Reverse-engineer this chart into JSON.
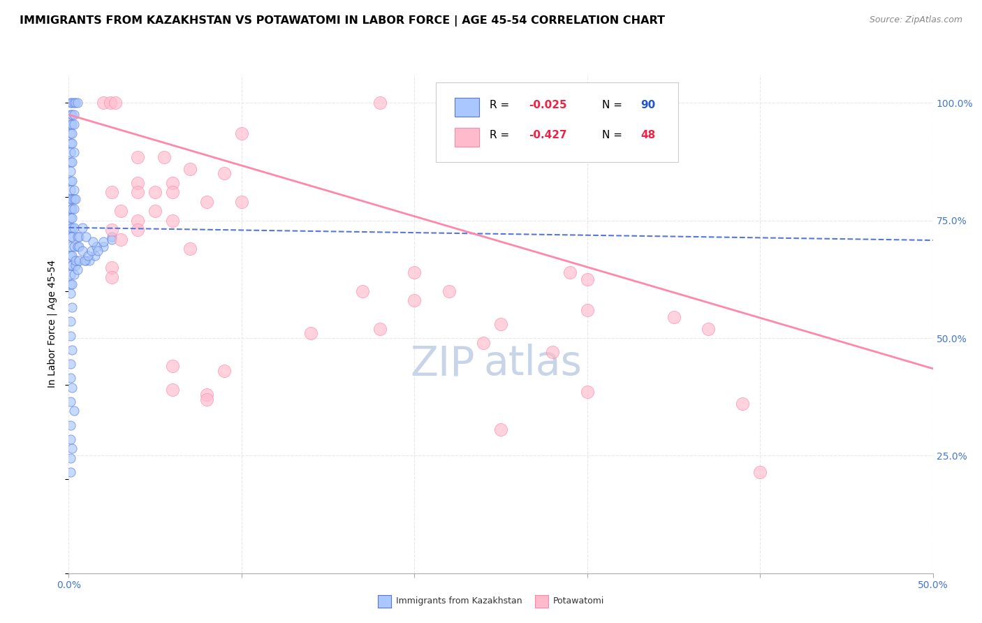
{
  "title": "IMMIGRANTS FROM KAZAKHSTAN VS POTAWATOMI IN LABOR FORCE | AGE 45-54 CORRELATION CHART",
  "source": "Source: ZipAtlas.com",
  "ylabel": "In Labor Force | Age 45-54",
  "xmin": 0.0,
  "xmax": 0.5,
  "ymin": 0.0,
  "ymax": 1.06,
  "y_ticks": [
    0.25,
    0.5,
    0.75,
    1.0
  ],
  "y_tick_labels": [
    "25.0%",
    "50.0%",
    "75.0%",
    "100.0%"
  ],
  "x_ticks": [
    0.0,
    0.1,
    0.2,
    0.3,
    0.4,
    0.5
  ],
  "x_tick_labels_show": [
    "0.0%",
    "",
    "",
    "",
    "",
    "50.0%"
  ],
  "watermark_top": "ZIP",
  "watermark_bot": "atlas",
  "blue_scatter": [
    [
      0.001,
      1.0
    ],
    [
      0.002,
      1.0
    ],
    [
      0.003,
      1.0
    ],
    [
      0.004,
      1.0
    ],
    [
      0.005,
      1.0
    ],
    [
      0.001,
      0.975
    ],
    [
      0.002,
      0.975
    ],
    [
      0.003,
      0.975
    ],
    [
      0.001,
      0.955
    ],
    [
      0.002,
      0.955
    ],
    [
      0.003,
      0.955
    ],
    [
      0.001,
      0.935
    ],
    [
      0.002,
      0.935
    ],
    [
      0.001,
      0.915
    ],
    [
      0.002,
      0.915
    ],
    [
      0.001,
      0.895
    ],
    [
      0.003,
      0.895
    ],
    [
      0.001,
      0.875
    ],
    [
      0.002,
      0.875
    ],
    [
      0.001,
      0.855
    ],
    [
      0.001,
      0.835
    ],
    [
      0.002,
      0.835
    ],
    [
      0.001,
      0.815
    ],
    [
      0.003,
      0.815
    ],
    [
      0.001,
      0.795
    ],
    [
      0.002,
      0.795
    ],
    [
      0.003,
      0.795
    ],
    [
      0.004,
      0.795
    ],
    [
      0.001,
      0.775
    ],
    [
      0.002,
      0.775
    ],
    [
      0.003,
      0.775
    ],
    [
      0.001,
      0.755
    ],
    [
      0.002,
      0.755
    ],
    [
      0.001,
      0.735
    ],
    [
      0.002,
      0.735
    ],
    [
      0.003,
      0.735
    ],
    [
      0.001,
      0.715
    ],
    [
      0.002,
      0.715
    ],
    [
      0.005,
      0.715
    ],
    [
      0.006,
      0.715
    ],
    [
      0.001,
      0.695
    ],
    [
      0.003,
      0.695
    ],
    [
      0.005,
      0.695
    ],
    [
      0.001,
      0.675
    ],
    [
      0.002,
      0.675
    ],
    [
      0.001,
      0.655
    ],
    [
      0.002,
      0.655
    ],
    [
      0.004,
      0.655
    ],
    [
      0.001,
      0.635
    ],
    [
      0.003,
      0.635
    ],
    [
      0.001,
      0.615
    ],
    [
      0.002,
      0.615
    ],
    [
      0.001,
      0.595
    ],
    [
      0.002,
      0.565
    ],
    [
      0.001,
      0.535
    ],
    [
      0.001,
      0.505
    ],
    [
      0.002,
      0.475
    ],
    [
      0.001,
      0.445
    ],
    [
      0.001,
      0.415
    ],
    [
      0.002,
      0.395
    ],
    [
      0.001,
      0.365
    ],
    [
      0.003,
      0.345
    ],
    [
      0.001,
      0.315
    ],
    [
      0.001,
      0.285
    ],
    [
      0.002,
      0.265
    ],
    [
      0.001,
      0.245
    ],
    [
      0.001,
      0.215
    ],
    [
      0.004,
      0.665
    ],
    [
      0.006,
      0.665
    ],
    [
      0.005,
      0.645
    ],
    [
      0.01,
      0.665
    ],
    [
      0.012,
      0.665
    ],
    [
      0.015,
      0.675
    ],
    [
      0.02,
      0.695
    ],
    [
      0.025,
      0.715
    ],
    [
      0.008,
      0.735
    ],
    [
      0.01,
      0.715
    ],
    [
      0.006,
      0.695
    ],
    [
      0.008,
      0.685
    ],
    [
      0.009,
      0.665
    ],
    [
      0.011,
      0.675
    ],
    [
      0.013,
      0.685
    ],
    [
      0.016,
      0.695
    ],
    [
      0.014,
      0.705
    ],
    [
      0.017,
      0.685
    ],
    [
      0.02,
      0.705
    ],
    [
      0.025,
      0.71
    ]
  ],
  "pink_scatter": [
    [
      0.02,
      1.0
    ],
    [
      0.024,
      1.0
    ],
    [
      0.027,
      1.0
    ],
    [
      0.18,
      1.0
    ],
    [
      0.1,
      0.935
    ],
    [
      0.04,
      0.885
    ],
    [
      0.055,
      0.885
    ],
    [
      0.07,
      0.86
    ],
    [
      0.09,
      0.85
    ],
    [
      0.04,
      0.83
    ],
    [
      0.06,
      0.83
    ],
    [
      0.025,
      0.81
    ],
    [
      0.04,
      0.81
    ],
    [
      0.05,
      0.81
    ],
    [
      0.06,
      0.81
    ],
    [
      0.08,
      0.79
    ],
    [
      0.1,
      0.79
    ],
    [
      0.03,
      0.77
    ],
    [
      0.05,
      0.77
    ],
    [
      0.04,
      0.75
    ],
    [
      0.06,
      0.75
    ],
    [
      0.025,
      0.73
    ],
    [
      0.04,
      0.73
    ],
    [
      0.03,
      0.71
    ],
    [
      0.07,
      0.69
    ],
    [
      0.025,
      0.65
    ],
    [
      0.025,
      0.63
    ],
    [
      0.2,
      0.64
    ],
    [
      0.29,
      0.64
    ],
    [
      0.3,
      0.625
    ],
    [
      0.17,
      0.6
    ],
    [
      0.22,
      0.6
    ],
    [
      0.2,
      0.58
    ],
    [
      0.3,
      0.56
    ],
    [
      0.35,
      0.545
    ],
    [
      0.25,
      0.53
    ],
    [
      0.18,
      0.52
    ],
    [
      0.14,
      0.51
    ],
    [
      0.24,
      0.49
    ],
    [
      0.28,
      0.47
    ],
    [
      0.06,
      0.44
    ],
    [
      0.09,
      0.43
    ],
    [
      0.06,
      0.39
    ],
    [
      0.08,
      0.38
    ],
    [
      0.08,
      0.37
    ],
    [
      0.37,
      0.52
    ],
    [
      0.39,
      0.36
    ],
    [
      0.3,
      0.385
    ],
    [
      0.25,
      0.305
    ],
    [
      0.4,
      0.215
    ]
  ],
  "blue_line": {
    "x0": 0.0,
    "y0": 0.735,
    "x1": 0.5,
    "y1": 0.708
  },
  "pink_line": {
    "x0": 0.0,
    "y0": 0.975,
    "x1": 0.5,
    "y1": 0.435
  },
  "title_fontsize": 11.5,
  "source_fontsize": 9,
  "axis_label_fontsize": 10,
  "tick_fontsize": 10,
  "legend_fontsize": 11,
  "watermark_fontsize_zip": 42,
  "watermark_fontsize_atlas": 42,
  "watermark_color_zip": "#c8d4e8",
  "watermark_color_atlas": "#c8d4e8",
  "background_color": "#ffffff",
  "grid_color": "#e8e8e8",
  "scatter_blue_face": "#aac8ff",
  "scatter_blue_edge": "#5577dd",
  "scatter_pink_face": "#ffbbcc",
  "scatter_pink_edge": "#ff88aa",
  "line_blue_color": "#5577dd",
  "line_pink_color": "#ff88aa"
}
